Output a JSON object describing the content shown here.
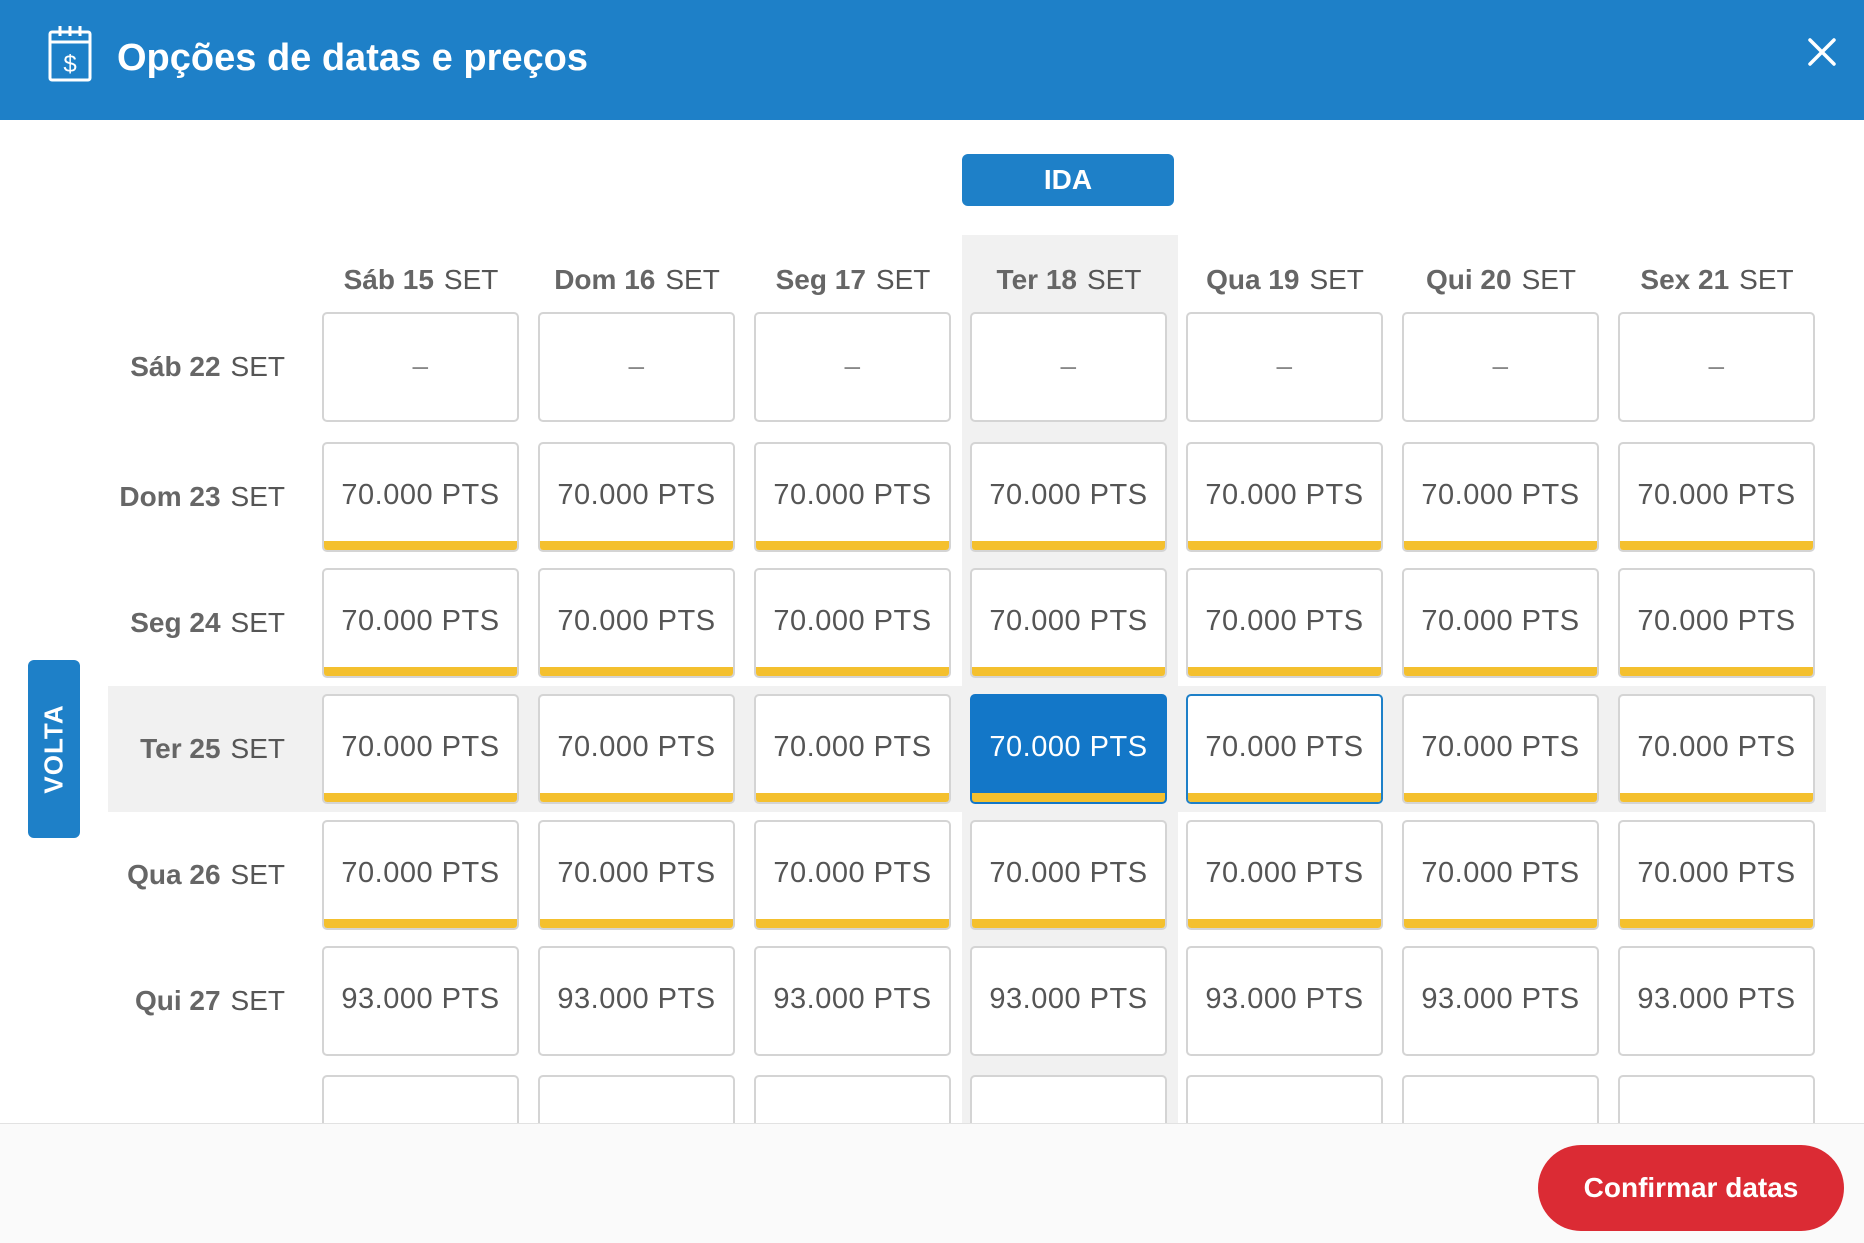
{
  "header": {
    "title": "Opções de datas e preços",
    "icon": "calendar-dollar-icon",
    "close_icon": "close-icon"
  },
  "ida_label": "IDA",
  "volta_label": "VOLTA",
  "columns": [
    {
      "day": "Sáb 15",
      "month": "SET"
    },
    {
      "day": "Dom 16",
      "month": "SET"
    },
    {
      "day": "Seg 17",
      "month": "SET"
    },
    {
      "day": "Ter 18",
      "month": "SET"
    },
    {
      "day": "Qua 19",
      "month": "SET"
    },
    {
      "day": "Qui 20",
      "month": "SET"
    },
    {
      "day": "Sex 21",
      "month": "SET"
    }
  ],
  "rows": [
    {
      "day": "Sáb 22",
      "month": "SET",
      "prices": [
        "–",
        "–",
        "–",
        "–",
        "–",
        "–",
        "–"
      ]
    },
    {
      "day": "Dom 23",
      "month": "SET",
      "prices": [
        "70.000 PTS",
        "70.000 PTS",
        "70.000 PTS",
        "70.000 PTS",
        "70.000 PTS",
        "70.000 PTS",
        "70.000 PTS"
      ]
    },
    {
      "day": "Seg 24",
      "month": "SET",
      "prices": [
        "70.000 PTS",
        "70.000 PTS",
        "70.000 PTS",
        "70.000 PTS",
        "70.000 PTS",
        "70.000 PTS",
        "70.000 PTS"
      ]
    },
    {
      "day": "Ter 25",
      "month": "SET",
      "prices": [
        "70.000 PTS",
        "70.000 PTS",
        "70.000 PTS",
        "70.000 PTS",
        "70.000 PTS",
        "70.000 PTS",
        "70.000 PTS"
      ]
    },
    {
      "day": "Qua 26",
      "month": "SET",
      "prices": [
        "70.000 PTS",
        "70.000 PTS",
        "70.000 PTS",
        "70.000 PTS",
        "70.000 PTS",
        "70.000 PTS",
        "70.000 PTS"
      ]
    },
    {
      "day": "Qui 27",
      "month": "SET",
      "prices": [
        "93.000 PTS",
        "93.000 PTS",
        "93.000 PTS",
        "93.000 PTS",
        "93.000 PTS",
        "93.000 PTS",
        "93.000 PTS"
      ]
    }
  ],
  "selected": {
    "row": 3,
    "col": 3
  },
  "hovered": {
    "row": 3,
    "col": 4
  },
  "highlight_color": "#f4c02e",
  "accent_color": "#1e80c8",
  "confirm_label": "Confirmar datas"
}
